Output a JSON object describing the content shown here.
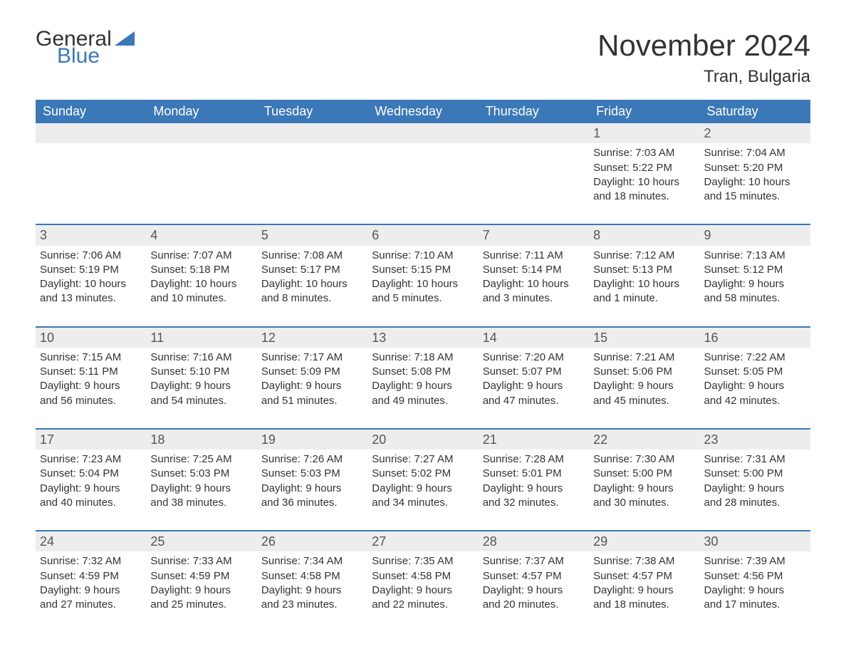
{
  "logo": {
    "part1": "General",
    "part2": "Blue"
  },
  "title": "November 2024",
  "location": "Tran, Bulgaria",
  "colors": {
    "header_bg": "#3b78b8",
    "header_text": "#ffffff",
    "rule": "#3b78b8",
    "daynum_bg": "#ededed",
    "body_text": "#333333",
    "page_bg": "#ffffff",
    "logo_blue": "#3b78b8"
  },
  "typography": {
    "title_fontsize": 42,
    "location_fontsize": 24,
    "header_fontsize": 18,
    "daynum_fontsize": 18,
    "body_fontsize": 15,
    "logo_fontsize": 30
  },
  "day_headers": [
    "Sunday",
    "Monday",
    "Tuesday",
    "Wednesday",
    "Thursday",
    "Friday",
    "Saturday"
  ],
  "weeks": [
    [
      {
        "empty": true
      },
      {
        "empty": true
      },
      {
        "empty": true
      },
      {
        "empty": true
      },
      {
        "empty": true
      },
      {
        "num": "1",
        "sunrise": "Sunrise: 7:03 AM",
        "sunset": "Sunset: 5:22 PM",
        "daylight1": "Daylight: 10 hours",
        "daylight2": "and 18 minutes."
      },
      {
        "num": "2",
        "sunrise": "Sunrise: 7:04 AM",
        "sunset": "Sunset: 5:20 PM",
        "daylight1": "Daylight: 10 hours",
        "daylight2": "and 15 minutes."
      }
    ],
    [
      {
        "num": "3",
        "sunrise": "Sunrise: 7:06 AM",
        "sunset": "Sunset: 5:19 PM",
        "daylight1": "Daylight: 10 hours",
        "daylight2": "and 13 minutes."
      },
      {
        "num": "4",
        "sunrise": "Sunrise: 7:07 AM",
        "sunset": "Sunset: 5:18 PM",
        "daylight1": "Daylight: 10 hours",
        "daylight2": "and 10 minutes."
      },
      {
        "num": "5",
        "sunrise": "Sunrise: 7:08 AM",
        "sunset": "Sunset: 5:17 PM",
        "daylight1": "Daylight: 10 hours",
        "daylight2": "and 8 minutes."
      },
      {
        "num": "6",
        "sunrise": "Sunrise: 7:10 AM",
        "sunset": "Sunset: 5:15 PM",
        "daylight1": "Daylight: 10 hours",
        "daylight2": "and 5 minutes."
      },
      {
        "num": "7",
        "sunrise": "Sunrise: 7:11 AM",
        "sunset": "Sunset: 5:14 PM",
        "daylight1": "Daylight: 10 hours",
        "daylight2": "and 3 minutes."
      },
      {
        "num": "8",
        "sunrise": "Sunrise: 7:12 AM",
        "sunset": "Sunset: 5:13 PM",
        "daylight1": "Daylight: 10 hours",
        "daylight2": "and 1 minute."
      },
      {
        "num": "9",
        "sunrise": "Sunrise: 7:13 AM",
        "sunset": "Sunset: 5:12 PM",
        "daylight1": "Daylight: 9 hours",
        "daylight2": "and 58 minutes."
      }
    ],
    [
      {
        "num": "10",
        "sunrise": "Sunrise: 7:15 AM",
        "sunset": "Sunset: 5:11 PM",
        "daylight1": "Daylight: 9 hours",
        "daylight2": "and 56 minutes."
      },
      {
        "num": "11",
        "sunrise": "Sunrise: 7:16 AM",
        "sunset": "Sunset: 5:10 PM",
        "daylight1": "Daylight: 9 hours",
        "daylight2": "and 54 minutes."
      },
      {
        "num": "12",
        "sunrise": "Sunrise: 7:17 AM",
        "sunset": "Sunset: 5:09 PM",
        "daylight1": "Daylight: 9 hours",
        "daylight2": "and 51 minutes."
      },
      {
        "num": "13",
        "sunrise": "Sunrise: 7:18 AM",
        "sunset": "Sunset: 5:08 PM",
        "daylight1": "Daylight: 9 hours",
        "daylight2": "and 49 minutes."
      },
      {
        "num": "14",
        "sunrise": "Sunrise: 7:20 AM",
        "sunset": "Sunset: 5:07 PM",
        "daylight1": "Daylight: 9 hours",
        "daylight2": "and 47 minutes."
      },
      {
        "num": "15",
        "sunrise": "Sunrise: 7:21 AM",
        "sunset": "Sunset: 5:06 PM",
        "daylight1": "Daylight: 9 hours",
        "daylight2": "and 45 minutes."
      },
      {
        "num": "16",
        "sunrise": "Sunrise: 7:22 AM",
        "sunset": "Sunset: 5:05 PM",
        "daylight1": "Daylight: 9 hours",
        "daylight2": "and 42 minutes."
      }
    ],
    [
      {
        "num": "17",
        "sunrise": "Sunrise: 7:23 AM",
        "sunset": "Sunset: 5:04 PM",
        "daylight1": "Daylight: 9 hours",
        "daylight2": "and 40 minutes."
      },
      {
        "num": "18",
        "sunrise": "Sunrise: 7:25 AM",
        "sunset": "Sunset: 5:03 PM",
        "daylight1": "Daylight: 9 hours",
        "daylight2": "and 38 minutes."
      },
      {
        "num": "19",
        "sunrise": "Sunrise: 7:26 AM",
        "sunset": "Sunset: 5:03 PM",
        "daylight1": "Daylight: 9 hours",
        "daylight2": "and 36 minutes."
      },
      {
        "num": "20",
        "sunrise": "Sunrise: 7:27 AM",
        "sunset": "Sunset: 5:02 PM",
        "daylight1": "Daylight: 9 hours",
        "daylight2": "and 34 minutes."
      },
      {
        "num": "21",
        "sunrise": "Sunrise: 7:28 AM",
        "sunset": "Sunset: 5:01 PM",
        "daylight1": "Daylight: 9 hours",
        "daylight2": "and 32 minutes."
      },
      {
        "num": "22",
        "sunrise": "Sunrise: 7:30 AM",
        "sunset": "Sunset: 5:00 PM",
        "daylight1": "Daylight: 9 hours",
        "daylight2": "and 30 minutes."
      },
      {
        "num": "23",
        "sunrise": "Sunrise: 7:31 AM",
        "sunset": "Sunset: 5:00 PM",
        "daylight1": "Daylight: 9 hours",
        "daylight2": "and 28 minutes."
      }
    ],
    [
      {
        "num": "24",
        "sunrise": "Sunrise: 7:32 AM",
        "sunset": "Sunset: 4:59 PM",
        "daylight1": "Daylight: 9 hours",
        "daylight2": "and 27 minutes."
      },
      {
        "num": "25",
        "sunrise": "Sunrise: 7:33 AM",
        "sunset": "Sunset: 4:59 PM",
        "daylight1": "Daylight: 9 hours",
        "daylight2": "and 25 minutes."
      },
      {
        "num": "26",
        "sunrise": "Sunrise: 7:34 AM",
        "sunset": "Sunset: 4:58 PM",
        "daylight1": "Daylight: 9 hours",
        "daylight2": "and 23 minutes."
      },
      {
        "num": "27",
        "sunrise": "Sunrise: 7:35 AM",
        "sunset": "Sunset: 4:58 PM",
        "daylight1": "Daylight: 9 hours",
        "daylight2": "and 22 minutes."
      },
      {
        "num": "28",
        "sunrise": "Sunrise: 7:37 AM",
        "sunset": "Sunset: 4:57 PM",
        "daylight1": "Daylight: 9 hours",
        "daylight2": "and 20 minutes."
      },
      {
        "num": "29",
        "sunrise": "Sunrise: 7:38 AM",
        "sunset": "Sunset: 4:57 PM",
        "daylight1": "Daylight: 9 hours",
        "daylight2": "and 18 minutes."
      },
      {
        "num": "30",
        "sunrise": "Sunrise: 7:39 AM",
        "sunset": "Sunset: 4:56 PM",
        "daylight1": "Daylight: 9 hours",
        "daylight2": "and 17 minutes."
      }
    ]
  ]
}
